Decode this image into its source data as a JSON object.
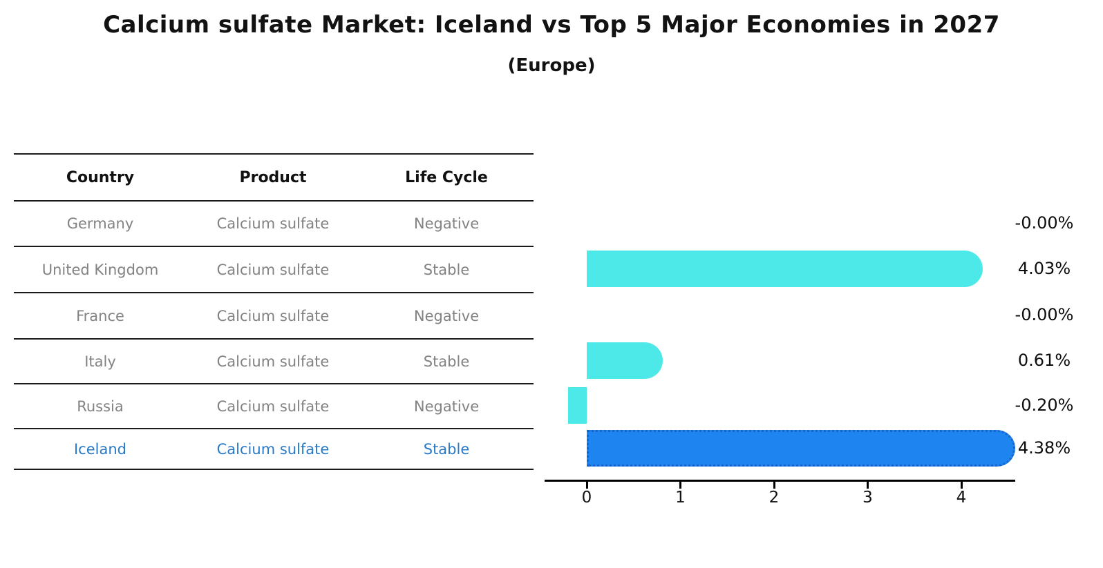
{
  "title": "Calcium sulfate Market: Iceland vs Top 5 Major Economies in 2027",
  "subtitle": "(Europe)",
  "table": {
    "columns": [
      "Country",
      "Product",
      "Life Cycle"
    ],
    "rows": [
      {
        "country": "Germany",
        "product": "Calcium sulfate",
        "life_cycle": "Negative",
        "highlight": false
      },
      {
        "country": "United Kingdom",
        "product": "Calcium sulfate",
        "life_cycle": "Stable",
        "highlight": false
      },
      {
        "country": "France",
        "product": "Calcium sulfate",
        "life_cycle": "Negative",
        "highlight": false
      },
      {
        "country": "Italy",
        "product": "Calcium sulfate",
        "life_cycle": "Stable",
        "highlight": false
      },
      {
        "country": "Russia",
        "product": "Calcium sulfate",
        "life_cycle": "Negative",
        "highlight": false
      },
      {
        "country": "Iceland",
        "product": "Calcium sulfate",
        "life_cycle": "Stable",
        "highlight": true
      }
    ]
  },
  "chart_data": {
    "type": "bar",
    "orientation": "horizontal",
    "title": "Calcium sulfate Market: Iceland vs Top 5 Major Economies in 2027",
    "subtitle": "(Europe)",
    "categories": [
      "Germany",
      "United Kingdom",
      "France",
      "Italy",
      "Russia",
      "Iceland"
    ],
    "values": [
      -0.0,
      4.03,
      -0.0,
      0.61,
      -0.2,
      4.38
    ],
    "value_labels": [
      "-0.00%",
      "4.03%",
      "-0.00%",
      "0.61%",
      "-0.20%",
      "4.38%"
    ],
    "unit": "%",
    "xticks": [
      0,
      1,
      2,
      3,
      4
    ],
    "xlim": [
      -0.45,
      4.57
    ],
    "grid": false,
    "legend": false,
    "highlight_index": 5,
    "colors": {
      "bar_default": "#4DE8E8",
      "bar_highlight": "#1E85F0",
      "bar_highlight_border": "#1565CE",
      "table_text": "#828282",
      "table_highlight_text": "#2879C8",
      "axis": "#000000"
    }
  }
}
